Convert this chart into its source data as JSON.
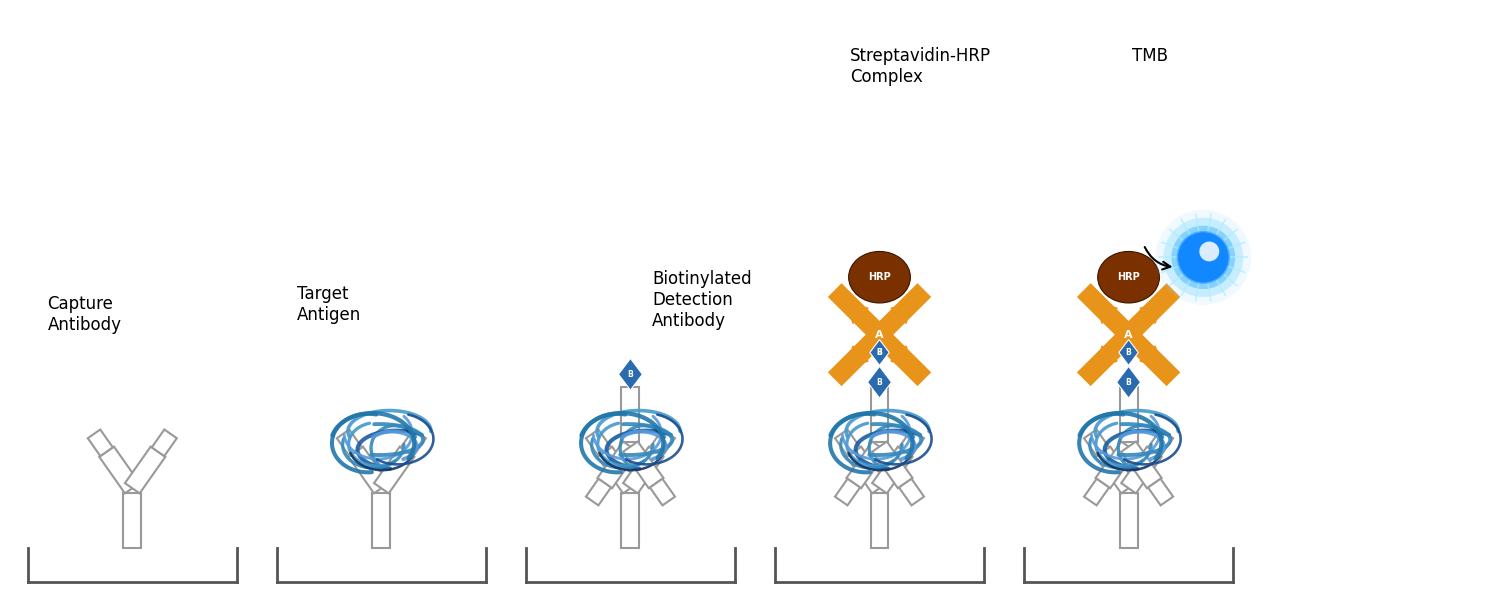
{
  "background_color": "#ffffff",
  "stages": [
    {
      "label": "Capture\nAntibody"
    },
    {
      "label": "Target\nAntigen"
    },
    {
      "label": "Biotinylated\nDetection\nAntibody"
    },
    {
      "label": "Streptavidin-HRP\nComplex"
    },
    {
      "label": "TMB"
    }
  ],
  "antibody_color": "#999999",
  "antigen_blue_dark": "#1a4d8f",
  "antigen_blue_light": "#4499cc",
  "biotin_blue": "#2a6aaf",
  "streptavidin_orange": "#e8941a",
  "hrp_brown": "#7B3000",
  "text_color": "#000000",
  "label_fontsize": 12
}
